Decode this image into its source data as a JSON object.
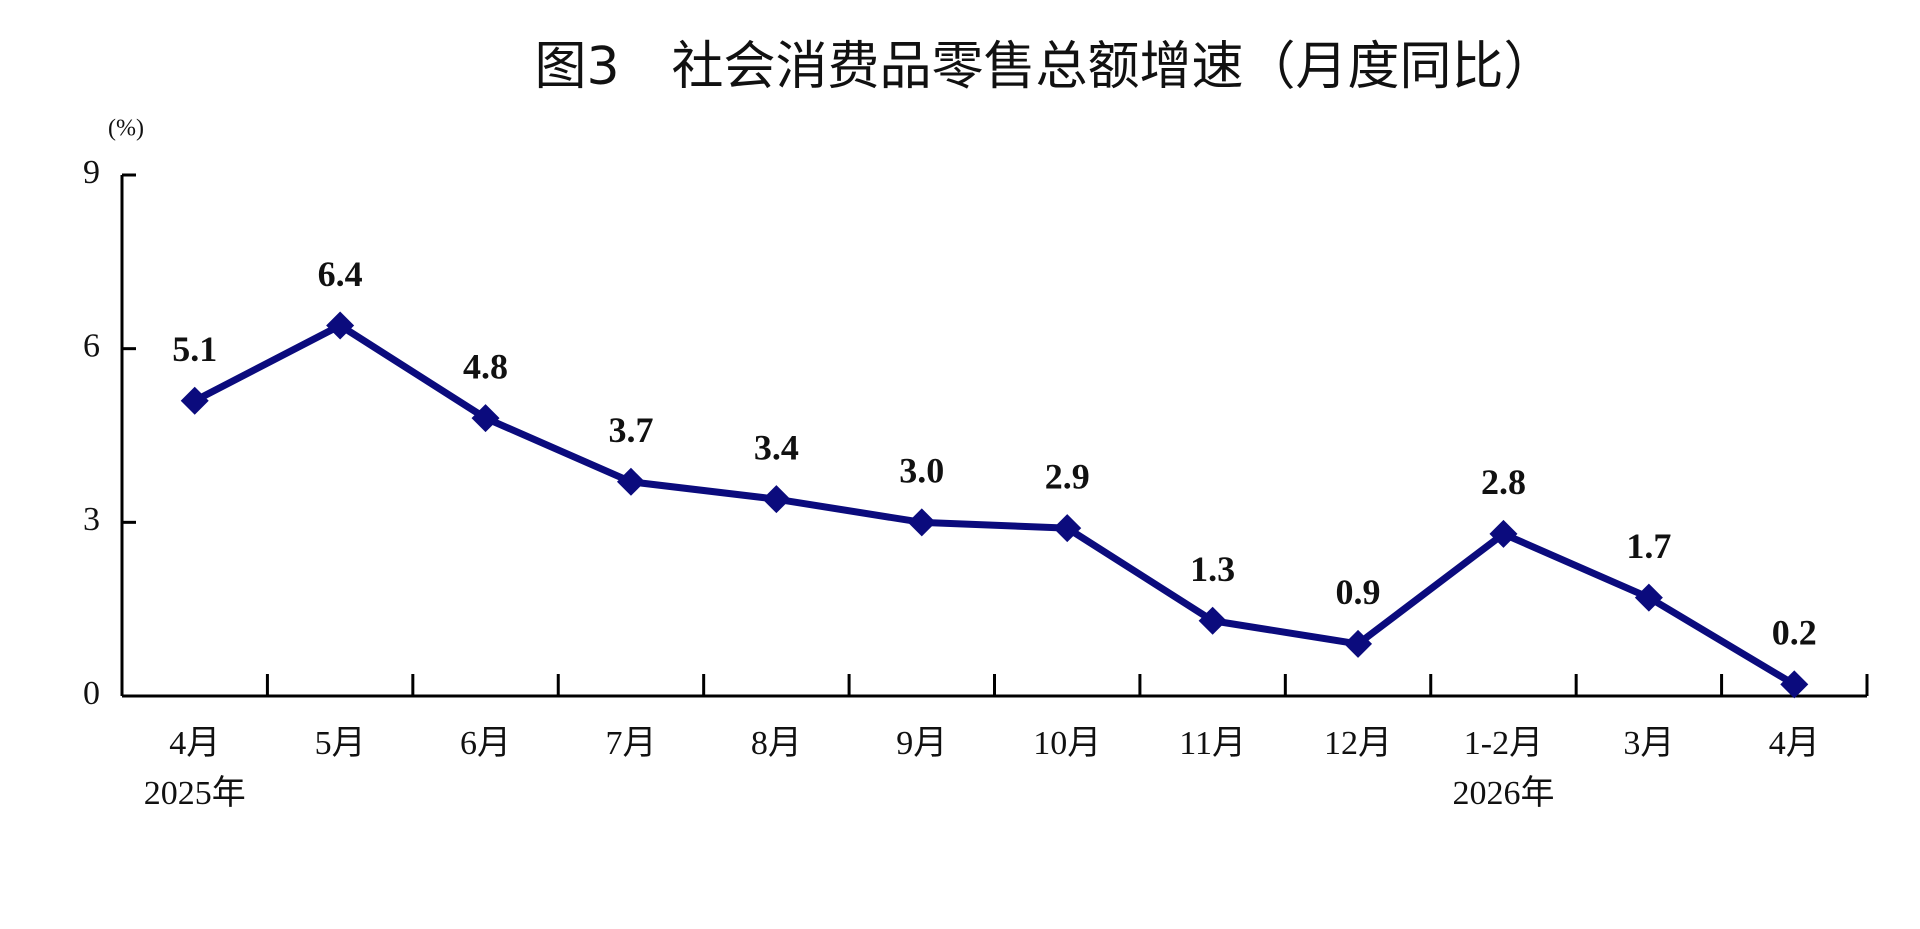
{
  "chart_data": {
    "type": "line",
    "title": "图3　社会消费品零售总额增速（月度同比）",
    "y_unit": "(%)",
    "categories": [
      "4月",
      "5月",
      "6月",
      "7月",
      "8月",
      "9月",
      "10月",
      "11月",
      "12月",
      "1-2月",
      "3月",
      "4月"
    ],
    "annotations": [
      "2025年",
      "2026年"
    ],
    "series": [
      {
        "color": "#0b0b7d",
        "values": [
          5.1,
          6.4,
          4.8,
          3.7,
          3.4,
          3.0,
          2.9,
          1.3,
          0.9,
          2.8,
          1.7,
          0.2
        ],
        "value_labels": [
          "5.1",
          "6.4",
          "4.8",
          "3.7",
          "3.4",
          "3.0",
          "2.9",
          "1.3",
          "0.9",
          "2.8",
          "1.7",
          "0.2"
        ]
      }
    ],
    "ylim": [
      0,
      9
    ],
    "yticks": [
      0,
      3,
      6,
      9
    ],
    "grid": false
  }
}
